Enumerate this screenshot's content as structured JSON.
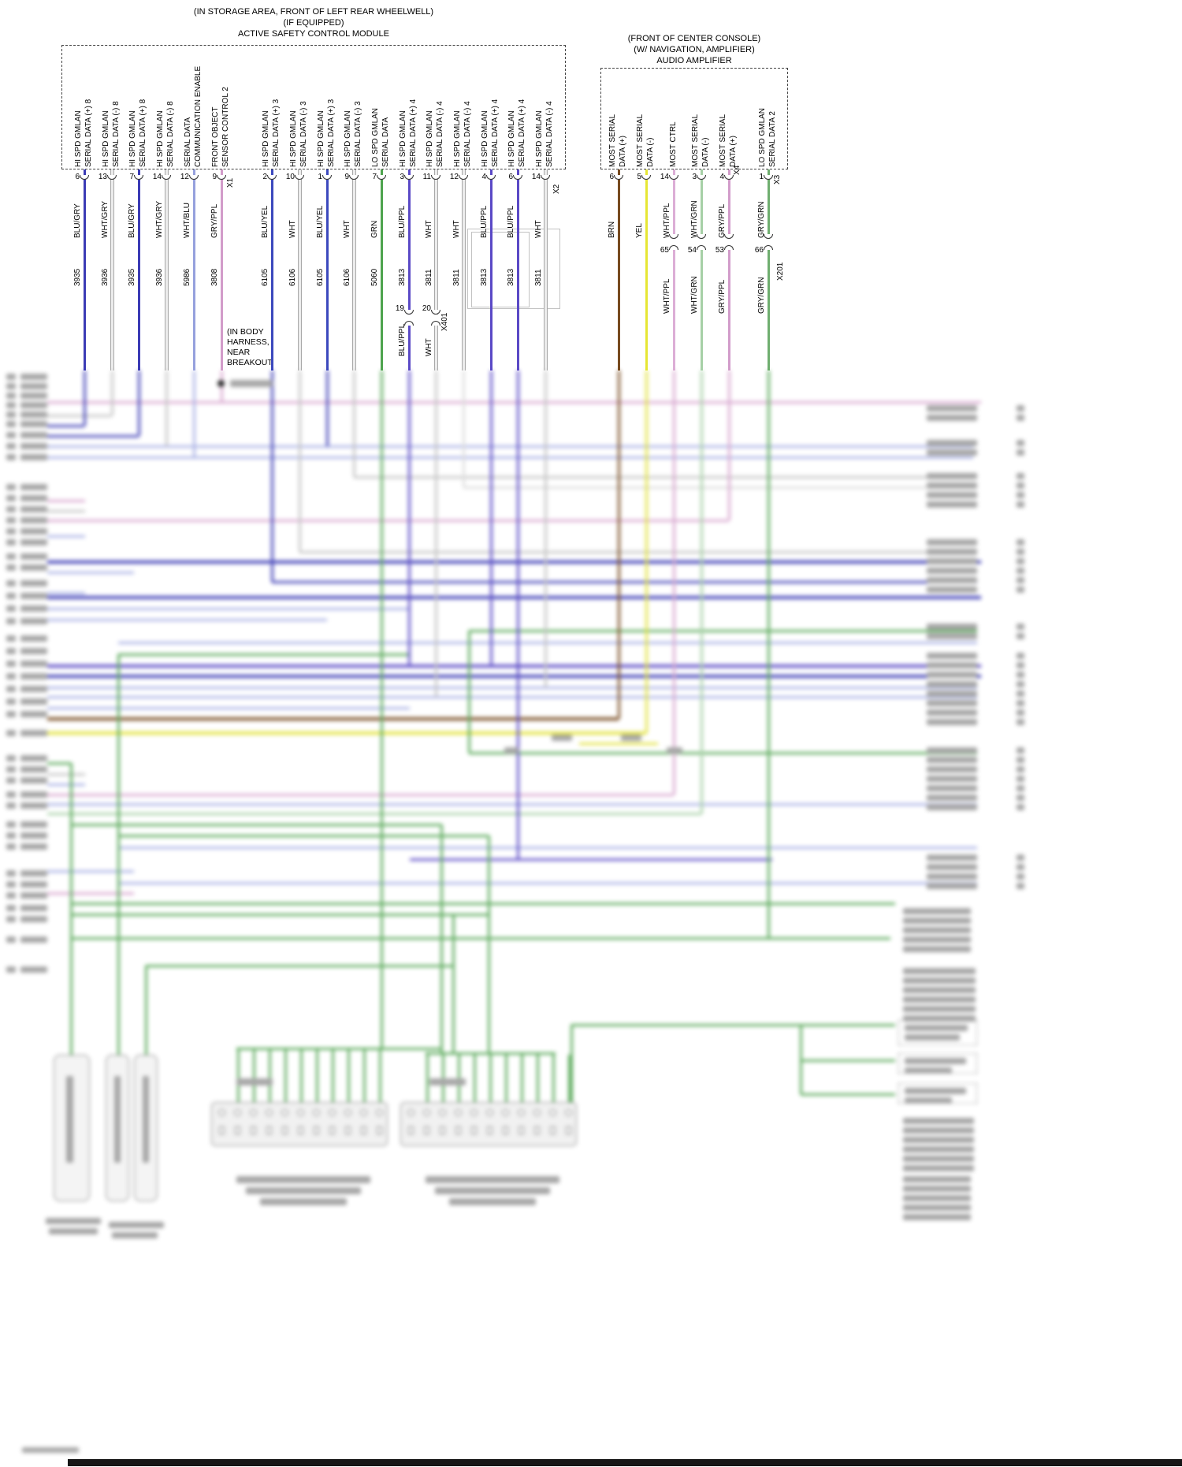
{
  "modules": {
    "ascm": {
      "location_line1": "(IN STORAGE AREA, FRONT OF LEFT REAR WHEELWELL)",
      "location_line2": "(IF EQUIPPED)",
      "name": "ACTIVE SAFETY CONTROL MODULE",
      "connector_x1": "X1",
      "connector_x2": "X2",
      "pins": [
        {
          "pin": "6",
          "sig1": "HI SPD GMLAN",
          "sig2": "SERIAL DATA (+) 8",
          "color": "BLU/GRY",
          "circuit": "3935"
        },
        {
          "pin": "13",
          "sig1": "HI SPD GMLAN",
          "sig2": "SERIAL DATA (-) 8",
          "color": "WHT/GRY",
          "circuit": "3936"
        },
        {
          "pin": "7",
          "sig1": "HI SPD GMLAN",
          "sig2": "SERIAL DATA (+) 8",
          "color": "BLU/GRY",
          "circuit": "3935"
        },
        {
          "pin": "14",
          "sig1": "HI SPD GMLAN",
          "sig2": "SERIAL DATA (-) 8",
          "color": "WHT/GRY",
          "circuit": "3936"
        },
        {
          "pin": "12",
          "sig1": "SERIAL DATA",
          "sig2": "COMMUNICATION ENABLE",
          "color": "WHT/BLU",
          "circuit": "5986"
        },
        {
          "pin": "9",
          "sig1": "FRONT OBJECT",
          "sig2": "SENSOR CONTROL 2",
          "color": "GRY/PPL",
          "circuit": "3808"
        },
        {
          "pin": "2",
          "sig1": "HI SPD GMLAN",
          "sig2": "SERIAL DATA (+) 3",
          "color": "BLU/YEL",
          "circuit": "6105"
        },
        {
          "pin": "10",
          "sig1": "HI SPD GMLAN",
          "sig2": "SERIAL DATA (-) 3",
          "color": "WHT",
          "circuit": "6106"
        },
        {
          "pin": "1",
          "sig1": "HI SPD GMLAN",
          "sig2": "SERIAL DATA (+) 3",
          "color": "BLU/YEL",
          "circuit": "6105"
        },
        {
          "pin": "9",
          "sig1": "HI SPD GMLAN",
          "sig2": "SERIAL DATA (-) 3",
          "color": "WHT",
          "circuit": "6106"
        },
        {
          "pin": "7",
          "sig1": "LO SPD GMLAN",
          "sig2": "SERIAL DATA",
          "color": "GRN",
          "circuit": "5060"
        },
        {
          "pin": "3",
          "sig1": "HI SPD GMLAN",
          "sig2": "SERIAL DATA (+) 4",
          "color": "BLU/PPL",
          "circuit": "3813"
        },
        {
          "pin": "11",
          "sig1": "HI SPD GMLAN",
          "sig2": "SERIAL DATA (-) 4",
          "color": "WHT",
          "circuit": "3811"
        },
        {
          "pin": "12",
          "sig1": "HI SPD GMLAN",
          "sig2": "SERIAL DATA (-) 4",
          "color": "WHT",
          "circuit": "3811"
        },
        {
          "pin": "4",
          "sig1": "HI SPD GMLAN",
          "sig2": "SERIAL DATA (+) 4",
          "color": "BLU/PPL",
          "circuit": "3813"
        },
        {
          "pin": "6",
          "sig1": "HI SPD GMLAN",
          "sig2": "SERIAL DATA (+) 4",
          "color": "BLU/PPL",
          "circuit": "3813"
        },
        {
          "pin": "14",
          "sig1": "HI SPD GMLAN",
          "sig2": "SERIAL DATA (-) 4",
          "color": "WHT",
          "circuit": "3811"
        }
      ]
    },
    "amp": {
      "location_line1": "(FRONT OF CENTER CONSOLE)",
      "location_line2": "(W/ NAVIGATION, AMPLIFIER)",
      "name": "AUDIO AMPLIFIER",
      "connector_x4": "X4",
      "connector_x3": "X3",
      "pins": [
        {
          "pin": "6",
          "sig1": "MOST SERIAL",
          "sig2": "DATA (+)",
          "color": "BRN"
        },
        {
          "pin": "5",
          "sig1": "MOST SERIAL",
          "sig2": "DATA (-)",
          "color": "YEL"
        },
        {
          "pin": "14",
          "sig1": "MOST CTRL",
          "sig2": "",
          "color": "WHT/PPL"
        },
        {
          "pin": "3",
          "sig1": "MOST SERIAL",
          "sig2": "DATA (-)",
          "color": "WHT/GRN"
        },
        {
          "pin": "4",
          "sig1": "MOST SERIAL",
          "sig2": "DATA (+)",
          "color": "GRY/PPL"
        },
        {
          "pin": "1",
          "sig1": "LO SPD GMLAN",
          "sig2": "SERIAL DATA 2",
          "color": "GRY/GRN"
        }
      ],
      "inline_connector": {
        "name": "X201",
        "cavities": [
          {
            "num": "65",
            "color": "WHT/PPL"
          },
          {
            "num": "54",
            "color": "WHT/GRN"
          },
          {
            "num": "53",
            "color": "GRY/PPL"
          },
          {
            "num": "66",
            "color": "GRY/GRN"
          }
        ]
      }
    }
  },
  "x401": {
    "name": "X401",
    "cavities": [
      {
        "num": "19",
        "color": "BLU/PPL"
      },
      {
        "num": "20",
        "color": "WHT"
      }
    ]
  },
  "note_body_harness": {
    "line1": "(IN BODY",
    "line2": "HARNESS,",
    "line3": "NEAR",
    "line4": "BREAKOUT"
  },
  "wire_colors": {
    "BLU/GRY": "#3b3bb5",
    "WHT/GRY": "#c4c4c4",
    "WHT/BLU": "#96a0dd",
    "GRY/PPL": "#d29cca",
    "BLU/YEL": "#3c49bd",
    "WHT": "#d2d2d2",
    "GRN": "#4ea44e",
    "BLU/PPL": "#5a49c6",
    "BRN": "#774a1f",
    "YEL": "#e6e634",
    "WHT/PPL": "#dcaed6",
    "WHT/GRN": "#a6d0a6",
    "GRY/GRN": "#6fae6f"
  }
}
